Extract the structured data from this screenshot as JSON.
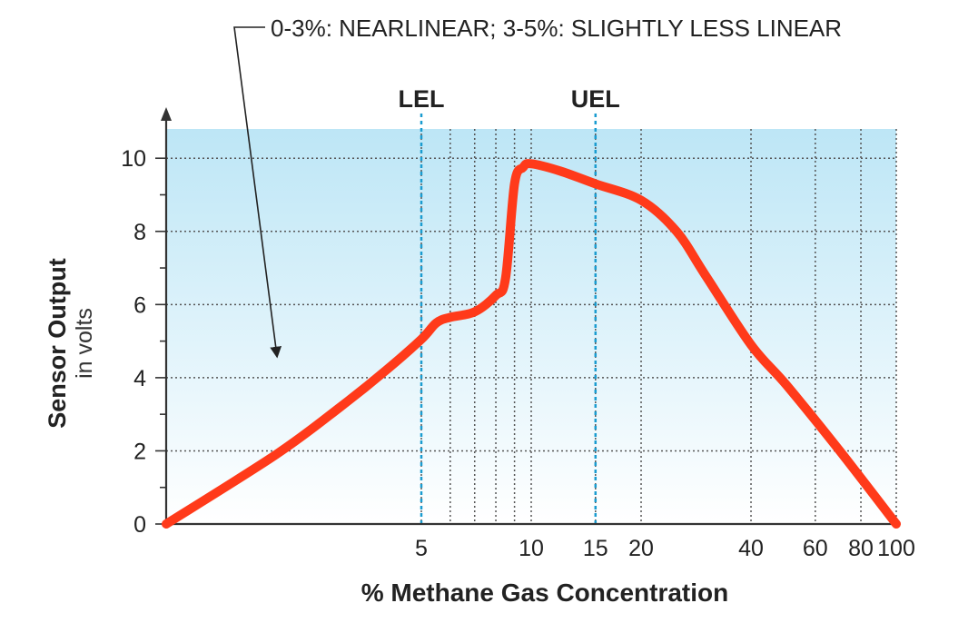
{
  "chart_data": {
    "type": "line",
    "annotation": "0-3%: NEARLINEAR;  3-5%: SLIGHTLY LESS LINEAR",
    "ylabel_main": "Sensor Output",
    "ylabel_sub": "in volts",
    "xlabel": "% Methane Gas Concentration",
    "x_scale": "log",
    "xlim": [
      1,
      100
    ],
    "ylim": [
      0,
      10.8
    ],
    "x_ticks": [
      5,
      10,
      15,
      20,
      40,
      60,
      80,
      100
    ],
    "x_tick_labels": [
      "5",
      "10",
      "15",
      "20",
      "40",
      "60",
      "80",
      "100"
    ],
    "y_ticks": [
      0,
      2,
      4,
      6,
      8,
      10
    ],
    "y_tick_labels": [
      "0",
      "2",
      "4",
      "6",
      "8",
      "10"
    ],
    "grid_x": [
      5,
      6,
      7,
      8,
      9,
      10,
      15,
      20,
      40,
      60,
      80,
      100
    ],
    "grid_y": [
      2,
      4,
      6,
      8,
      10
    ],
    "limits": [
      {
        "label": "LEL",
        "x": 5
      },
      {
        "label": "UEL",
        "x": 15
      }
    ],
    "series": [
      {
        "color": "#ff3a1a",
        "x": [
          1,
          2,
          3,
          4,
          5,
          5.5,
          6,
          7,
          8,
          8.5,
          9,
          9.5,
          10,
          12,
          15,
          20,
          25,
          30,
          40,
          50,
          70,
          100
        ],
        "y": [
          0,
          1.9,
          3.2,
          4.2,
          5.05,
          5.5,
          5.65,
          5.8,
          6.25,
          6.7,
          9.3,
          9.75,
          9.85,
          9.65,
          9.3,
          8.85,
          8.0,
          6.8,
          4.9,
          3.8,
          2.0,
          0
        ]
      }
    ],
    "colors": {
      "band_top": "#bde6f6",
      "band_bottom": "#ffffff",
      "grid": "#555555",
      "limit_line": "#1a9cd0",
      "axis": "#333333"
    }
  }
}
